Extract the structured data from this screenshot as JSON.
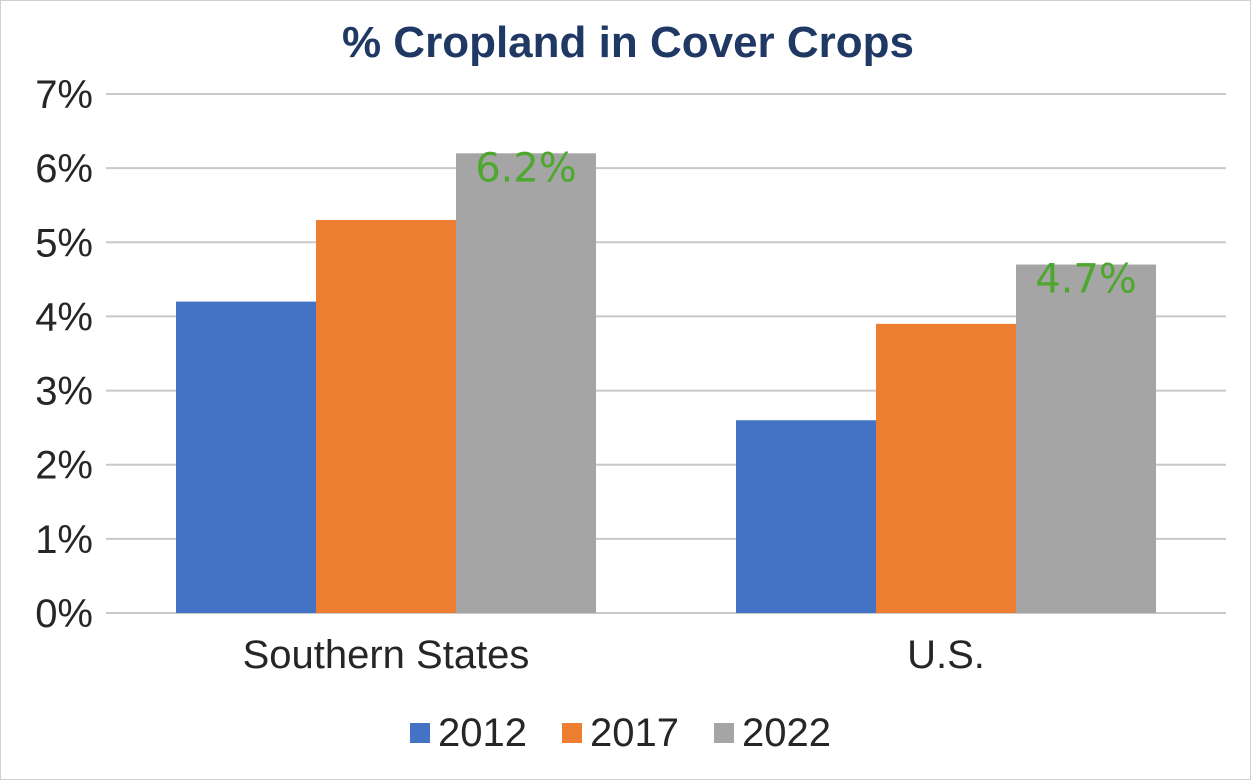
{
  "chart_data": {
    "type": "bar",
    "title": "% Cropland in Cover Crops",
    "categories": [
      "Southern States",
      "U.S."
    ],
    "series": [
      {
        "name": "2012",
        "values": [
          4.2,
          2.6
        ],
        "color": "#4472c4"
      },
      {
        "name": "2017",
        "values": [
          5.3,
          3.9
        ],
        "color": "#ed7d31"
      },
      {
        "name": "2022",
        "values": [
          6.2,
          4.7
        ],
        "color": "#a5a5a5"
      }
    ],
    "data_labels": [
      {
        "series": "2022",
        "category": "Southern States",
        "text": "6.2%"
      },
      {
        "series": "2022",
        "category": "U.S.",
        "text": "4.7%"
      }
    ],
    "data_label_color": "#4ea72e",
    "yticks": [
      "0%",
      "1%",
      "2%",
      "3%",
      "4%",
      "5%",
      "6%",
      "7%"
    ],
    "ylim": [
      0,
      7
    ],
    "grid": true,
    "legend_position": "bottom"
  }
}
